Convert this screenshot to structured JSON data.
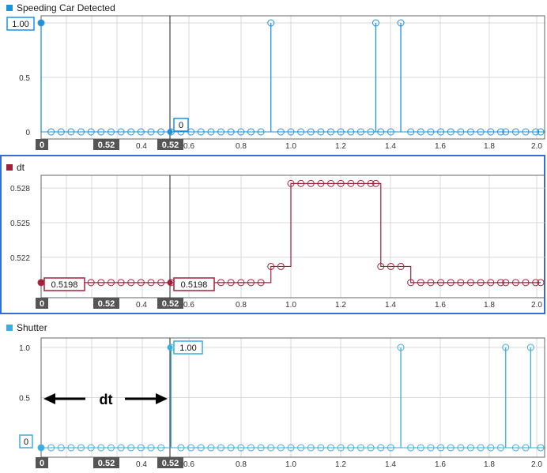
{
  "colors": {
    "blue": "#1e90e0",
    "maroon": "#a3203a",
    "cyan": "#3aaee0",
    "grid": "#d9d9d9",
    "cursor_label_bg": "#555555",
    "selected_frame": "#2f6fd6"
  },
  "panels": [
    {
      "title": "Speeding Car Detected",
      "y_ticks": [
        "1.00",
        "0.5",
        "0"
      ],
      "x_ticks": [
        "0.6",
        "0.8",
        "1.0",
        "1.2",
        "1.4",
        "1.6",
        "1.8",
        "2.0"
      ],
      "cursor_labels": [
        "0",
        "0.52",
        "0.4",
        "0.52"
      ],
      "value_labels": [
        "1.00",
        "0"
      ]
    },
    {
      "title": "dt",
      "y_ticks": [
        "0.528",
        "0.525",
        "0.522"
      ],
      "x_ticks": [
        "0.6",
        "0.8",
        "1.0",
        "1.2",
        "1.4",
        "1.6",
        "1.8",
        "2.0"
      ],
      "cursor_labels": [
        "0",
        "0.52",
        "0.4",
        "0.52"
      ],
      "value_labels": [
        "0.5198",
        "0.5198"
      ]
    },
    {
      "title": "Shutter",
      "y_ticks": [
        "1.0",
        "0.5",
        "0"
      ],
      "x_ticks": [
        "0.6",
        "0.8",
        "1.0",
        "1.2",
        "1.4",
        "1.6",
        "1.8",
        "2.0"
      ],
      "cursor_labels": [
        "0",
        "0.52",
        "0.4",
        "0.52"
      ],
      "value_labels": [
        "1.00",
        "0"
      ],
      "annotation": "dt"
    }
  ],
  "chart_data": [
    {
      "type": "stem",
      "title": "Speeding Car Detected",
      "xlim": [
        0,
        2.0
      ],
      "ylim": [
        0,
        1.0
      ],
      "x": [
        0.0,
        0.04,
        0.08,
        0.12,
        0.16,
        0.2,
        0.24,
        0.28,
        0.32,
        0.36,
        0.4,
        0.44,
        0.48,
        0.52,
        0.56,
        0.6,
        0.64,
        0.68,
        0.72,
        0.76,
        0.8,
        0.84,
        0.88,
        0.92,
        0.96,
        1.0,
        1.04,
        1.08,
        1.12,
        1.16,
        1.2,
        1.24,
        1.28,
        1.32,
        1.34,
        1.36,
        1.4,
        1.44,
        1.48,
        1.52,
        1.56,
        1.6,
        1.64,
        1.68,
        1.72,
        1.76,
        1.8,
        1.84,
        1.86,
        1.9,
        1.94,
        1.98,
        2.0
      ],
      "y": [
        1,
        0,
        0,
        0,
        0,
        0,
        0,
        0,
        0,
        0,
        0,
        0,
        0,
        0,
        0,
        0,
        0,
        0,
        0,
        0,
        0,
        0,
        0,
        1,
        0,
        0,
        0,
        0,
        0,
        0,
        0,
        0,
        0,
        0,
        1,
        0,
        0,
        1,
        0,
        0,
        0,
        0,
        0,
        0,
        0,
        0,
        0,
        0,
        0,
        0,
        0,
        0,
        0
      ]
    },
    {
      "type": "stairs",
      "title": "dt",
      "xlim": [
        0,
        2.0
      ],
      "ylim": [
        0.5189,
        0.5287
      ],
      "x": [
        0.0,
        0.04,
        0.08,
        0.12,
        0.16,
        0.2,
        0.24,
        0.28,
        0.32,
        0.36,
        0.4,
        0.44,
        0.48,
        0.52,
        0.56,
        0.6,
        0.64,
        0.68,
        0.72,
        0.76,
        0.8,
        0.84,
        0.88,
        0.92,
        0.96,
        1.0,
        1.04,
        1.08,
        1.12,
        1.16,
        1.2,
        1.24,
        1.28,
        1.32,
        1.34,
        1.36,
        1.4,
        1.44,
        1.48,
        1.52,
        1.56,
        1.6,
        1.64,
        1.68,
        1.72,
        1.76,
        1.8,
        1.84,
        1.86,
        1.9,
        1.94,
        1.98,
        2.0
      ],
      "y": [
        0.5198,
        0.5198,
        0.5198,
        0.5198,
        0.5198,
        0.5198,
        0.5198,
        0.5198,
        0.5198,
        0.5198,
        0.5198,
        0.5198,
        0.5198,
        0.5198,
        0.5198,
        0.5198,
        0.5198,
        0.5198,
        0.5198,
        0.5198,
        0.5198,
        0.5198,
        0.5198,
        0.5212,
        0.5212,
        0.5284,
        0.5284,
        0.5284,
        0.5284,
        0.5284,
        0.5284,
        0.5284,
        0.5284,
        0.5284,
        0.5284,
        0.5212,
        0.5212,
        0.5212,
        0.5198,
        0.5198,
        0.5198,
        0.5198,
        0.5198,
        0.5198,
        0.5198,
        0.5198,
        0.5198,
        0.5198,
        0.5198,
        0.5198,
        0.5198,
        0.5198,
        0.5198
      ]
    },
    {
      "type": "stem",
      "title": "Shutter",
      "xlim": [
        0,
        2.0
      ],
      "ylim": [
        0,
        1.0
      ],
      "x": [
        0.0,
        0.04,
        0.08,
        0.12,
        0.16,
        0.2,
        0.24,
        0.28,
        0.32,
        0.36,
        0.4,
        0.44,
        0.48,
        0.52,
        0.56,
        0.6,
        0.64,
        0.68,
        0.72,
        0.76,
        0.8,
        0.84,
        0.88,
        0.92,
        0.96,
        1.0,
        1.04,
        1.08,
        1.12,
        1.16,
        1.2,
        1.24,
        1.28,
        1.32,
        1.36,
        1.4,
        1.44,
        1.48,
        1.52,
        1.56,
        1.6,
        1.64,
        1.68,
        1.72,
        1.76,
        1.8,
        1.84,
        1.86,
        1.9,
        1.94,
        1.96,
        2.0
      ],
      "y": [
        0,
        0,
        0,
        0,
        0,
        0,
        0,
        0,
        0,
        0,
        0,
        0,
        0,
        1,
        0,
        0,
        0,
        0,
        0,
        0,
        0,
        0,
        0,
        0,
        0,
        0,
        0,
        0,
        0,
        0,
        0,
        0,
        0,
        0,
        0,
        0,
        1,
        0,
        0,
        0,
        0,
        0,
        0,
        0,
        0,
        0,
        0,
        1,
        0,
        0,
        1,
        0
      ]
    }
  ]
}
